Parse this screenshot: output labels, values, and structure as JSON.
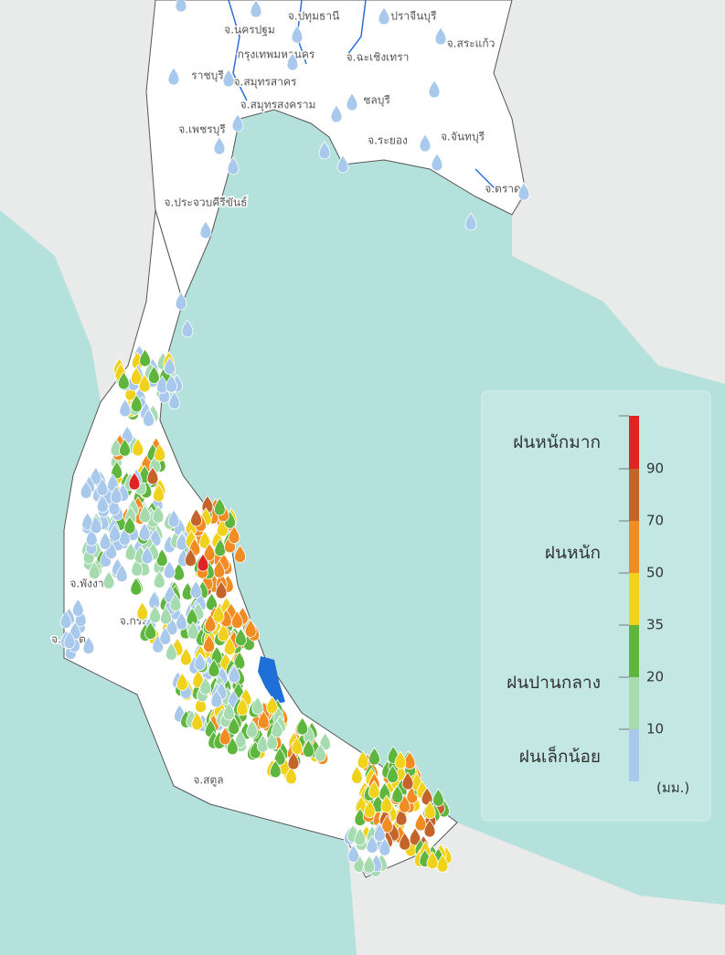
{
  "provinces": [
    "จ.ปทุมธานี",
    "จ.ปราจีนบุรี",
    "จ.นครปฐม",
    "จ.สระแก้ว",
    "กรุงเทพมหานคร",
    "จ.ฉะเชิงเทรา",
    "ราชบุรี",
    "จ.สมุทรสาคร",
    "ชลบุรี",
    "จ.สมุทรสงคราม",
    "จ.เพชรบุรี",
    "จ.ระยอง",
    "จ.จันทบุรี",
    "จ.ตราด",
    "จ.ประจวบคีรีขันธ์",
    "จ.พังงา",
    "จ.กระบี่",
    "จ.ภูเก็ต",
    "จ.สตูล"
  ],
  "legend": {
    "labels": [
      "ฝนหนักมาก",
      "ฝนหนัก",
      "ฝนปานกลาง",
      "ฝนเล็กน้อย"
    ],
    "ticks": [
      10,
      20,
      35,
      50,
      70,
      90
    ],
    "colors": [
      "#a8c8ec",
      "#a6dbb0",
      "#5fb63e",
      "#f0d21c",
      "#f08c22",
      "#c4642a",
      "#e02424"
    ],
    "unit": "(มม.)"
  }
}
